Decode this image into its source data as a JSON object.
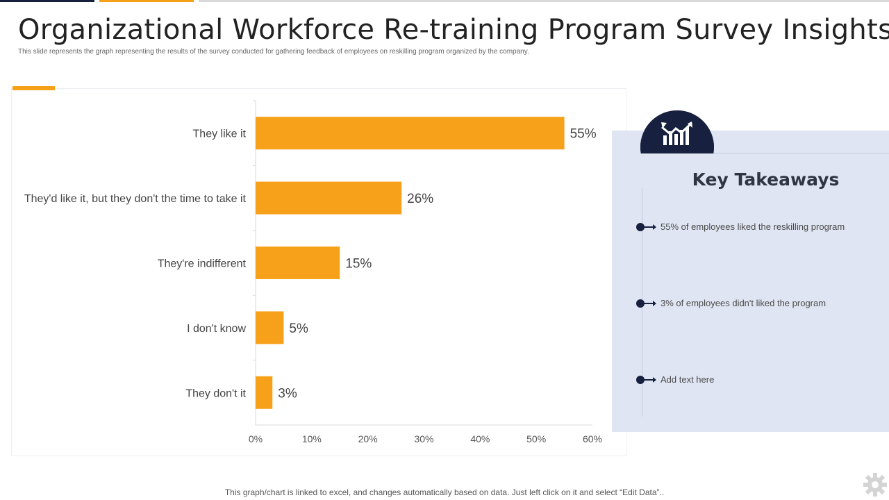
{
  "title": "Organizational Workforce Re-training Program Survey Insights",
  "subtitle": "This slide represents the graph representing the results of the survey conducted for gathering feedback of employees on reskilling  program organized by the company.",
  "colors": {
    "accent": "#f7a11a",
    "navy": "#17213f",
    "panel": "#dfe5f2"
  },
  "chart_data": {
    "type": "bar",
    "orientation": "horizontal",
    "categories": [
      "They like it",
      "They'd like it, but they don't the time to take it",
      "They're indifferent",
      "I don't know",
      "They don't it"
    ],
    "values": [
      55,
      26,
      15,
      5,
      3
    ],
    "value_labels": [
      "55%",
      "26%",
      "15%",
      "5%",
      "3%"
    ],
    "xlim": [
      0,
      60
    ],
    "x_ticks": [
      "0%",
      "10%",
      "20%",
      "30%",
      "40%",
      "50%",
      "60%"
    ],
    "bar_color": "#f7a11a",
    "grid": false,
    "title": "",
    "xlabel": "",
    "ylabel": ""
  },
  "takeaways": {
    "icon": "chart-growth-icon",
    "title": "Key Takeaways",
    "items": [
      "55% of employees liked the reskilling program",
      "3% of employees didn't liked the program",
      "Add text here"
    ]
  },
  "footer": "This graph/chart is linked to excel,  and changes automatically based on data. Just left click on it and select “Edit Data”..",
  "footer_icon": "gear-icon"
}
